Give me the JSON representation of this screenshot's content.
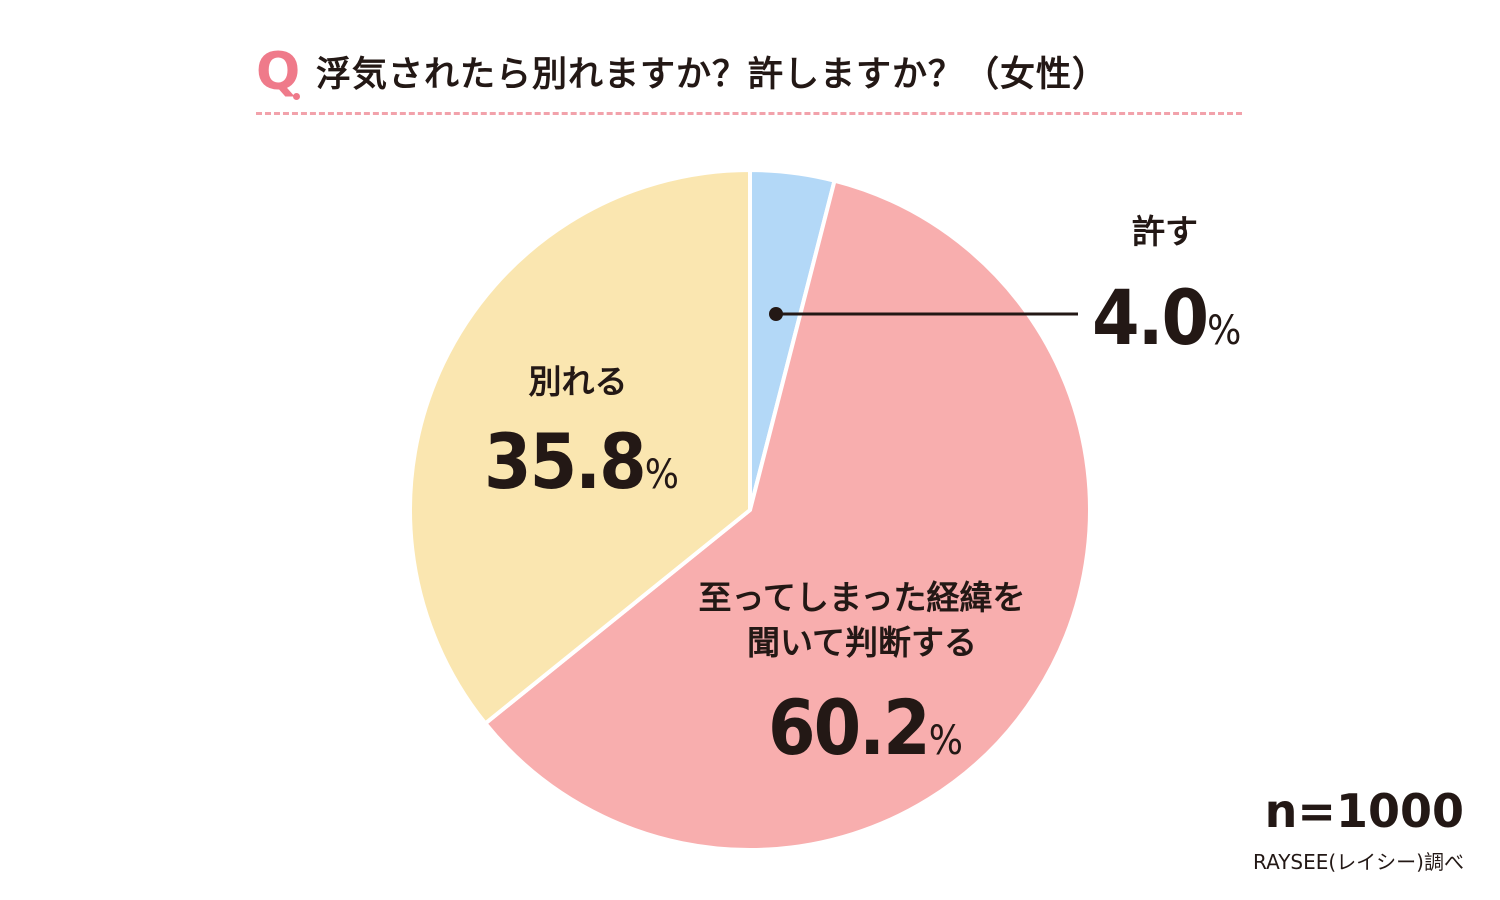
{
  "header": {
    "q_mark": "Q",
    "title": "浮気されたら別れますか？許しますか？（女性）"
  },
  "chart_data": {
    "type": "pie",
    "title": "浮気されたら別れますか？許しますか？（女性）",
    "start": "12 o'clock, clockwise",
    "slices": [
      {
        "label": "許す",
        "value": 4.0,
        "value_text": "4.0",
        "color": "#b3d8f7"
      },
      {
        "label": "至ってしまった経緯を聞いて判断する",
        "label_lines": [
          "至ってしまった経緯を",
          "聞いて判断する"
        ],
        "value": 60.2,
        "value_text": "60.2",
        "color": "#f8aeae"
      },
      {
        "label": "別れる",
        "value": 35.8,
        "value_text": "35.8",
        "color": "#fae6b0"
      }
    ],
    "unit": "%"
  },
  "footer": {
    "sample": "n=1000",
    "source": "RAYSEE(レイシー)調べ"
  },
  "colors": {
    "accent": "#ef7a8a",
    "text": "#231815"
  }
}
